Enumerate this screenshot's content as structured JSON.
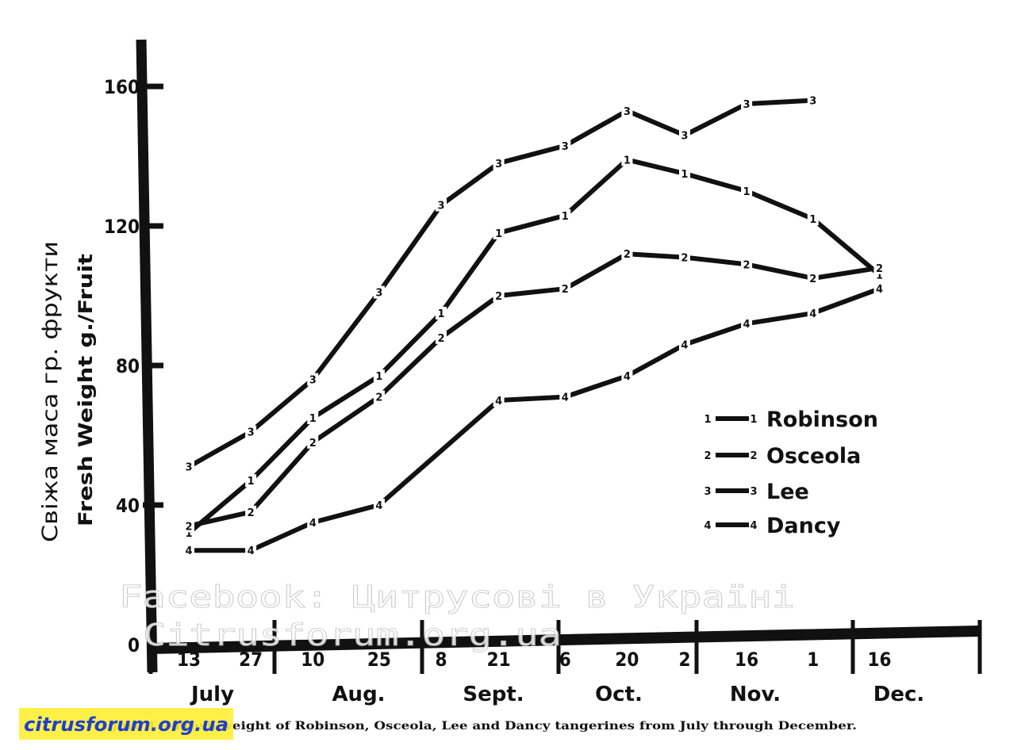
{
  "chart_data": {
    "type": "line",
    "title": "",
    "caption": "Figure 1.—Fresh weight of Robinson, Osceola, Lee and Dancy tangerines from July through December.",
    "ylabel": "Fresh Weight   g./Fruit",
    "ylabel_ua": "Свіжа маса   гр. фрукти",
    "xlabel": "",
    "ylim": [
      0,
      175
    ],
    "yticks": [
      0,
      40,
      80,
      120,
      160
    ],
    "date_ticks": [
      "13",
      "27",
      "10",
      "25",
      "8",
      "21",
      "6",
      "20",
      "2",
      "16",
      "1",
      "16"
    ],
    "months": [
      "July",
      "Aug.",
      "Sept.",
      "Oct.",
      "Nov.",
      "Dec."
    ],
    "grid": false,
    "legend_position": "right",
    "series": [
      {
        "name": "Robinson",
        "marker": "1",
        "points": [
          {
            "date": "Jul 13",
            "y": 32
          },
          {
            "date": "Jul 27",
            "y": 47
          },
          {
            "date": "Aug 10",
            "y": 65
          },
          {
            "date": "Aug 25",
            "y": 77
          },
          {
            "date": "Sep 8",
            "y": 95
          },
          {
            "date": "Sep 21",
            "y": 118
          },
          {
            "date": "Oct 6",
            "y": 123
          },
          {
            "date": "Oct 20",
            "y": 139
          },
          {
            "date": "Nov 2",
            "y": 135
          },
          {
            "date": "Nov 16",
            "y": 130
          },
          {
            "date": "Dec 1",
            "y": 122
          },
          {
            "date": "Dec 16",
            "y": 106
          }
        ]
      },
      {
        "name": "Osceola",
        "marker": "2",
        "points": [
          {
            "date": "Jul 13",
            "y": 34
          },
          {
            "date": "Jul 27",
            "y": 38
          },
          {
            "date": "Aug 10",
            "y": 58
          },
          {
            "date": "Aug 25",
            "y": 71
          },
          {
            "date": "Sep 8",
            "y": 88
          },
          {
            "date": "Sep 21",
            "y": 100
          },
          {
            "date": "Oct 6",
            "y": 102
          },
          {
            "date": "Oct 20",
            "y": 112
          },
          {
            "date": "Nov 2",
            "y": 111
          },
          {
            "date": "Nov 16",
            "y": 109
          },
          {
            "date": "Dec 1",
            "y": 105
          },
          {
            "date": "Dec 16",
            "y": 108
          }
        ]
      },
      {
        "name": "Lee",
        "marker": "3",
        "points": [
          {
            "date": "Jul 13",
            "y": 51
          },
          {
            "date": "Jul 27",
            "y": 61
          },
          {
            "date": "Aug 10",
            "y": 76
          },
          {
            "date": "Aug 25",
            "y": 101
          },
          {
            "date": "Sep 8",
            "y": 126
          },
          {
            "date": "Sep 21",
            "y": 138
          },
          {
            "date": "Oct 6",
            "y": 143
          },
          {
            "date": "Oct 20",
            "y": 153
          },
          {
            "date": "Nov 2",
            "y": 146
          },
          {
            "date": "Nov 16",
            "y": 155
          },
          {
            "date": "Dec 1",
            "y": 156
          }
        ]
      },
      {
        "name": "Dancy",
        "marker": "4",
        "points": [
          {
            "date": "Jul 13",
            "y": 27
          },
          {
            "date": "Jul 27",
            "y": 27
          },
          {
            "date": "Aug 10",
            "y": 35
          },
          {
            "date": "Aug 25",
            "y": 40
          },
          {
            "date": "Sep 21",
            "y": 70
          },
          {
            "date": "Oct 6",
            "y": 71
          },
          {
            "date": "Oct 20",
            "y": 77
          },
          {
            "date": "Nov 2",
            "y": 86
          },
          {
            "date": "Nov 16",
            "y": 92
          },
          {
            "date": "Dec 1",
            "y": 95
          },
          {
            "date": "Dec 16",
            "y": 102
          }
        ]
      }
    ]
  },
  "watermarks": {
    "facebook": "Facebook: Цитрусові в Україні",
    "site": "Citrusforum.org.ua",
    "logo": "citrusforum.org.ua"
  }
}
